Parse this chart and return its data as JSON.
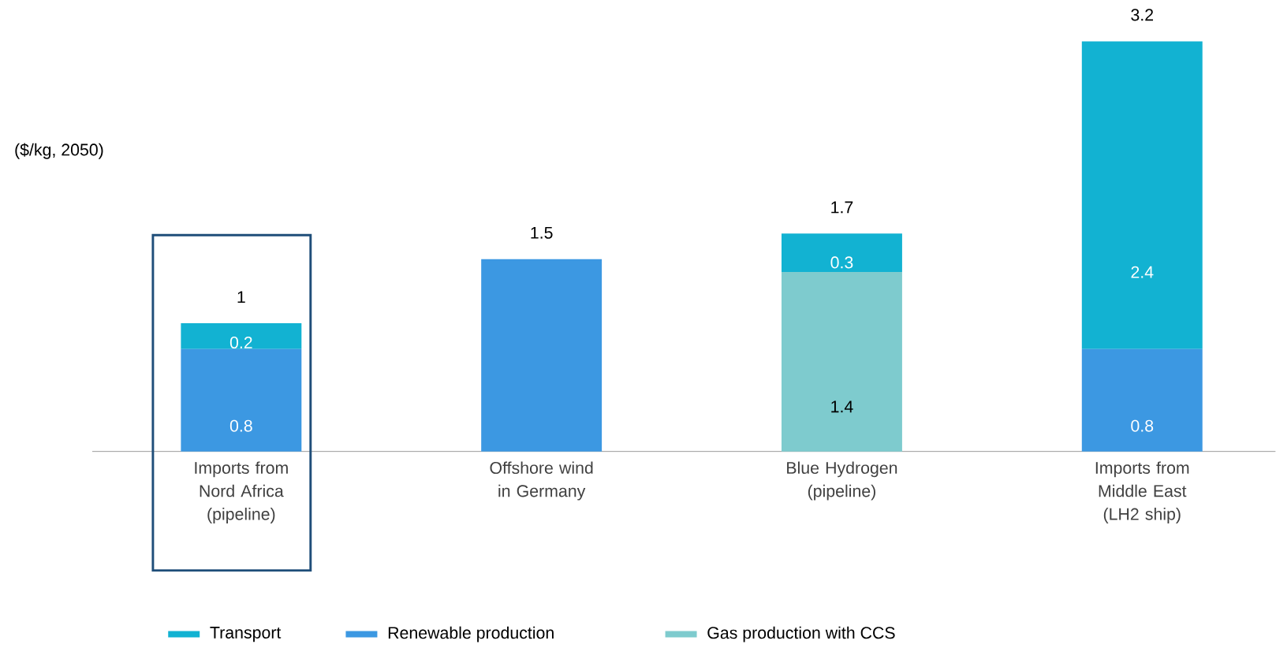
{
  "chart_data": {
    "type": "bar",
    "stacked": true,
    "ylabel": "($/kg, 2050)",
    "categories": [
      "Imports from Nord Africa (pipeline)",
      "Offshore wind in Germany",
      "Blue Hydrogen (pipeline)",
      "Imports from Middle  East (LH2 ship)"
    ],
    "series": [
      {
        "name": "Gas production with CCS",
        "color": "#7ecbce",
        "values": [
          null,
          null,
          1.4,
          null
        ],
        "value_labels": [
          null,
          null,
          "1.4",
          null
        ]
      },
      {
        "name": "Renewable production",
        "color": "#3c98e2",
        "values": [
          0.8,
          1.5,
          null,
          0.8
        ],
        "value_labels": [
          "0.8",
          null,
          null,
          "0.8"
        ]
      },
      {
        "name": "Transport",
        "color": "#12b2d2",
        "values": [
          0.2,
          null,
          0.3,
          2.4
        ],
        "value_labels": [
          "0.2",
          null,
          "0.3",
          "2.4"
        ]
      }
    ],
    "totals": [
      "1",
      "1.5",
      "1.7",
      "3.2"
    ],
    "legend": "bottom"
  }
}
